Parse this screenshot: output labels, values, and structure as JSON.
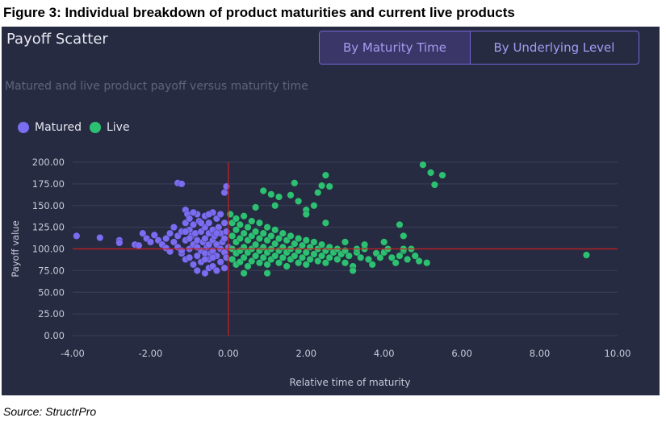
{
  "figure": {
    "title": "Figure 3: Individual breakdown of product maturities and current live products",
    "source": "Source: StructrPro"
  },
  "panel": {
    "title": "Payoff Scatter",
    "subtitle": "Matured and live product payoff versus maturity time",
    "toggle": {
      "active_label": "By Maturity Time",
      "inactive_label": "By Underlying Level"
    },
    "legend": [
      {
        "label": "Matured",
        "color": "#7b6cf0"
      },
      {
        "label": "Live",
        "color": "#2ec072"
      }
    ]
  },
  "colors": {
    "panel_bg": "#272b42",
    "grid": "#3a3f58",
    "reference_line": "#cc1f1f",
    "matured": "#7b6cf0",
    "live": "#2ec072",
    "axis_text": "#c8cad6"
  },
  "chart_data": {
    "type": "scatter",
    "title": "Payoff Scatter",
    "subtitle": "Matured and live product payoff versus maturity time",
    "xlabel": "Relative time of maturity",
    "ylabel": "Payoff value",
    "xlim": [
      -4,
      10
    ],
    "ylim": [
      0,
      200
    ],
    "x_ticks": [
      "-4.00",
      "-2.00",
      "0.00",
      "2.00",
      "4.00",
      "6.00",
      "8.00",
      "10.00"
    ],
    "y_ticks": [
      "0.00",
      "25.00",
      "50.00",
      "75.00",
      "100.00",
      "125.00",
      "150.00",
      "175.00",
      "200.00"
    ],
    "grid": "horizontal",
    "legend_position": "top-left",
    "reference_lines": {
      "x": 0,
      "y": 100
    },
    "series": [
      {
        "name": "Matured",
        "points": [
          [
            -3.9,
            115
          ],
          [
            -3.3,
            113
          ],
          [
            -2.8,
            110
          ],
          [
            -2.8,
            107
          ],
          [
            -2.4,
            105
          ],
          [
            -2.3,
            104
          ],
          [
            -2.2,
            118
          ],
          [
            -2.1,
            112
          ],
          [
            -2.0,
            108
          ],
          [
            -1.9,
            116
          ],
          [
            -1.8,
            110
          ],
          [
            -1.7,
            105
          ],
          [
            -1.6,
            112
          ],
          [
            -1.6,
            101
          ],
          [
            -1.5,
            118
          ],
          [
            -1.5,
            97
          ],
          [
            -1.4,
            108
          ],
          [
            -1.4,
            125
          ],
          [
            -1.3,
            102
          ],
          [
            -1.3,
            115
          ],
          [
            -1.3,
            176
          ],
          [
            -1.2,
            175
          ],
          [
            -1.2,
            120
          ],
          [
            -1.2,
            95
          ],
          [
            -1.1,
            145
          ],
          [
            -1.1,
            130
          ],
          [
            -1.1,
            110
          ],
          [
            -1.1,
            88
          ],
          [
            -1.05,
            140
          ],
          [
            -1.0,
            135
          ],
          [
            -1.0,
            122
          ],
          [
            -1.0,
            100
          ],
          [
            -1.0,
            90
          ],
          [
            -0.95,
            115
          ],
          [
            -0.9,
            128
          ],
          [
            -0.9,
            105
          ],
          [
            -0.9,
            82
          ],
          [
            -0.85,
            118
          ],
          [
            -0.8,
            140
          ],
          [
            -0.8,
            110
          ],
          [
            -0.8,
            92
          ],
          [
            -0.8,
            75
          ],
          [
            -0.75,
            132
          ],
          [
            -0.7,
            120
          ],
          [
            -0.7,
            98
          ],
          [
            -0.7,
            85
          ],
          [
            -0.65,
            108
          ],
          [
            -0.6,
            138
          ],
          [
            -0.6,
            125
          ],
          [
            -0.6,
            112
          ],
          [
            -0.6,
            95
          ],
          [
            -0.6,
            72
          ],
          [
            -0.55,
            102
          ],
          [
            -0.5,
            130
          ],
          [
            -0.5,
            118
          ],
          [
            -0.5,
            105
          ],
          [
            -0.5,
            88
          ],
          [
            -0.5,
            78
          ],
          [
            -0.45,
            95
          ],
          [
            -0.4,
            142
          ],
          [
            -0.4,
            122
          ],
          [
            -0.4,
            110
          ],
          [
            -0.4,
            98
          ],
          [
            -0.4,
            80
          ],
          [
            -0.35,
            115
          ],
          [
            -0.3,
            135
          ],
          [
            -0.3,
            105
          ],
          [
            -0.3,
            92
          ],
          [
            -0.3,
            75
          ],
          [
            -0.25,
            125
          ],
          [
            -0.2,
            140
          ],
          [
            -0.2,
            118
          ],
          [
            -0.2,
            100
          ],
          [
            -0.2,
            85
          ],
          [
            -0.15,
            108
          ],
          [
            -0.1,
            130
          ],
          [
            -0.1,
            112
          ],
          [
            -0.1,
            96
          ],
          [
            -0.1,
            78
          ],
          [
            -0.05,
            120
          ],
          [
            -0.05,
            90
          ],
          [
            -0.1,
            165
          ],
          [
            -0.05,
            172
          ],
          [
            0.0,
            102
          ],
          [
            -1.2,
            98
          ],
          [
            -1.0,
            112
          ],
          [
            -0.7,
            130
          ],
          [
            -0.9,
            142
          ],
          [
            -0.6,
            88
          ],
          [
            -0.3,
            118
          ],
          [
            -0.8,
            102
          ],
          [
            -0.5,
            140
          ],
          [
            -1.1,
            120
          ],
          [
            -0.4,
            90
          ]
        ]
      },
      {
        "name": "Live",
        "points": [
          [
            0.05,
            140
          ],
          [
            0.1,
            130
          ],
          [
            0.1,
            115
          ],
          [
            0.1,
            100
          ],
          [
            0.1,
            88
          ],
          [
            0.2,
            135
          ],
          [
            0.2,
            122
          ],
          [
            0.2,
            108
          ],
          [
            0.2,
            95
          ],
          [
            0.2,
            82
          ],
          [
            0.3,
            128
          ],
          [
            0.3,
            112
          ],
          [
            0.3,
            98
          ],
          [
            0.3,
            85
          ],
          [
            0.4,
            138
          ],
          [
            0.4,
            118
          ],
          [
            0.4,
            102
          ],
          [
            0.4,
            90
          ],
          [
            0.5,
            125
          ],
          [
            0.5,
            110
          ],
          [
            0.5,
            96
          ],
          [
            0.5,
            80
          ],
          [
            0.6,
            132
          ],
          [
            0.6,
            115
          ],
          [
            0.6,
            100
          ],
          [
            0.6,
            86
          ],
          [
            0.7,
            120
          ],
          [
            0.7,
            105
          ],
          [
            0.7,
            92
          ],
          [
            0.8,
            130
          ],
          [
            0.8,
            112
          ],
          [
            0.8,
            98
          ],
          [
            0.8,
            84
          ],
          [
            0.9,
            118
          ],
          [
            0.9,
            102
          ],
          [
            0.9,
            90
          ],
          [
            1.0,
            125
          ],
          [
            1.0,
            110
          ],
          [
            1.0,
            96
          ],
          [
            1.0,
            82
          ],
          [
            1.1,
            115
          ],
          [
            1.1,
            100
          ],
          [
            1.1,
            88
          ],
          [
            1.2,
            122
          ],
          [
            1.2,
            106
          ],
          [
            1.2,
            92
          ],
          [
            1.3,
            112
          ],
          [
            1.3,
            98
          ],
          [
            1.3,
            84
          ],
          [
            1.4,
            118
          ],
          [
            1.4,
            102
          ],
          [
            1.4,
            90
          ],
          [
            1.5,
            110
          ],
          [
            1.5,
            96
          ],
          [
            1.5,
            80
          ],
          [
            1.6,
            115
          ],
          [
            1.6,
            100
          ],
          [
            1.6,
            88
          ],
          [
            1.7,
            106
          ],
          [
            1.7,
            92
          ],
          [
            1.8,
            112
          ],
          [
            1.8,
            98
          ],
          [
            1.8,
            84
          ],
          [
            1.9,
            104
          ],
          [
            1.9,
            90
          ],
          [
            2.0,
            110
          ],
          [
            2.0,
            96
          ],
          [
            2.0,
            82
          ],
          [
            2.1,
            102
          ],
          [
            2.1,
            88
          ],
          [
            2.2,
            108
          ],
          [
            2.2,
            94
          ],
          [
            2.3,
            100
          ],
          [
            2.3,
            86
          ],
          [
            2.4,
            105
          ],
          [
            2.4,
            92
          ],
          [
            2.5,
            98
          ],
          [
            2.5,
            84
          ],
          [
            2.6,
            102
          ],
          [
            2.6,
            90
          ],
          [
            2.7,
            96
          ],
          [
            2.8,
            100
          ],
          [
            2.8,
            88
          ],
          [
            2.9,
            94
          ],
          [
            3.0,
            98
          ],
          [
            3.0,
            84
          ],
          [
            3.1,
            92
          ],
          [
            3.2,
            80
          ],
          [
            3.3,
            96
          ],
          [
            3.4,
            90
          ],
          [
            3.5,
            100
          ],
          [
            3.6,
            88
          ],
          [
            3.7,
            82
          ],
          [
            3.8,
            95
          ],
          [
            3.9,
            90
          ],
          [
            4.0,
            96
          ],
          [
            4.1,
            100
          ],
          [
            4.2,
            90
          ],
          [
            4.3,
            84
          ],
          [
            4.4,
            92
          ],
          [
            4.5,
            98
          ],
          [
            4.6,
            88
          ],
          [
            4.7,
            100
          ],
          [
            4.8,
            92
          ],
          [
            4.9,
            86
          ],
          [
            5.1,
            84
          ],
          [
            2.4,
            173
          ],
          [
            2.5,
            185
          ],
          [
            2.6,
            172
          ],
          [
            2.3,
            165
          ],
          [
            1.3,
            160
          ],
          [
            0.9,
            167
          ],
          [
            1.1,
            163
          ],
          [
            1.2,
            150
          ],
          [
            1.6,
            162
          ],
          [
            1.8,
            155
          ],
          [
            2.0,
            145
          ],
          [
            2.2,
            150
          ],
          [
            1.7,
            176
          ],
          [
            2.0,
            140
          ],
          [
            2.5,
            130
          ],
          [
            0.7,
            148
          ],
          [
            3.0,
            108
          ],
          [
            3.3,
            100
          ],
          [
            3.5,
            105
          ],
          [
            4.0,
            108
          ],
          [
            4.5,
            100
          ],
          [
            5.0,
            197
          ],
          [
            5.2,
            188
          ],
          [
            5.3,
            174
          ],
          [
            5.5,
            185
          ],
          [
            4.4,
            128
          ],
          [
            4.5,
            115
          ],
          [
            9.2,
            93
          ],
          [
            0.4,
            72
          ],
          [
            1.0,
            72
          ],
          [
            3.2,
            75
          ]
        ]
      }
    ]
  }
}
